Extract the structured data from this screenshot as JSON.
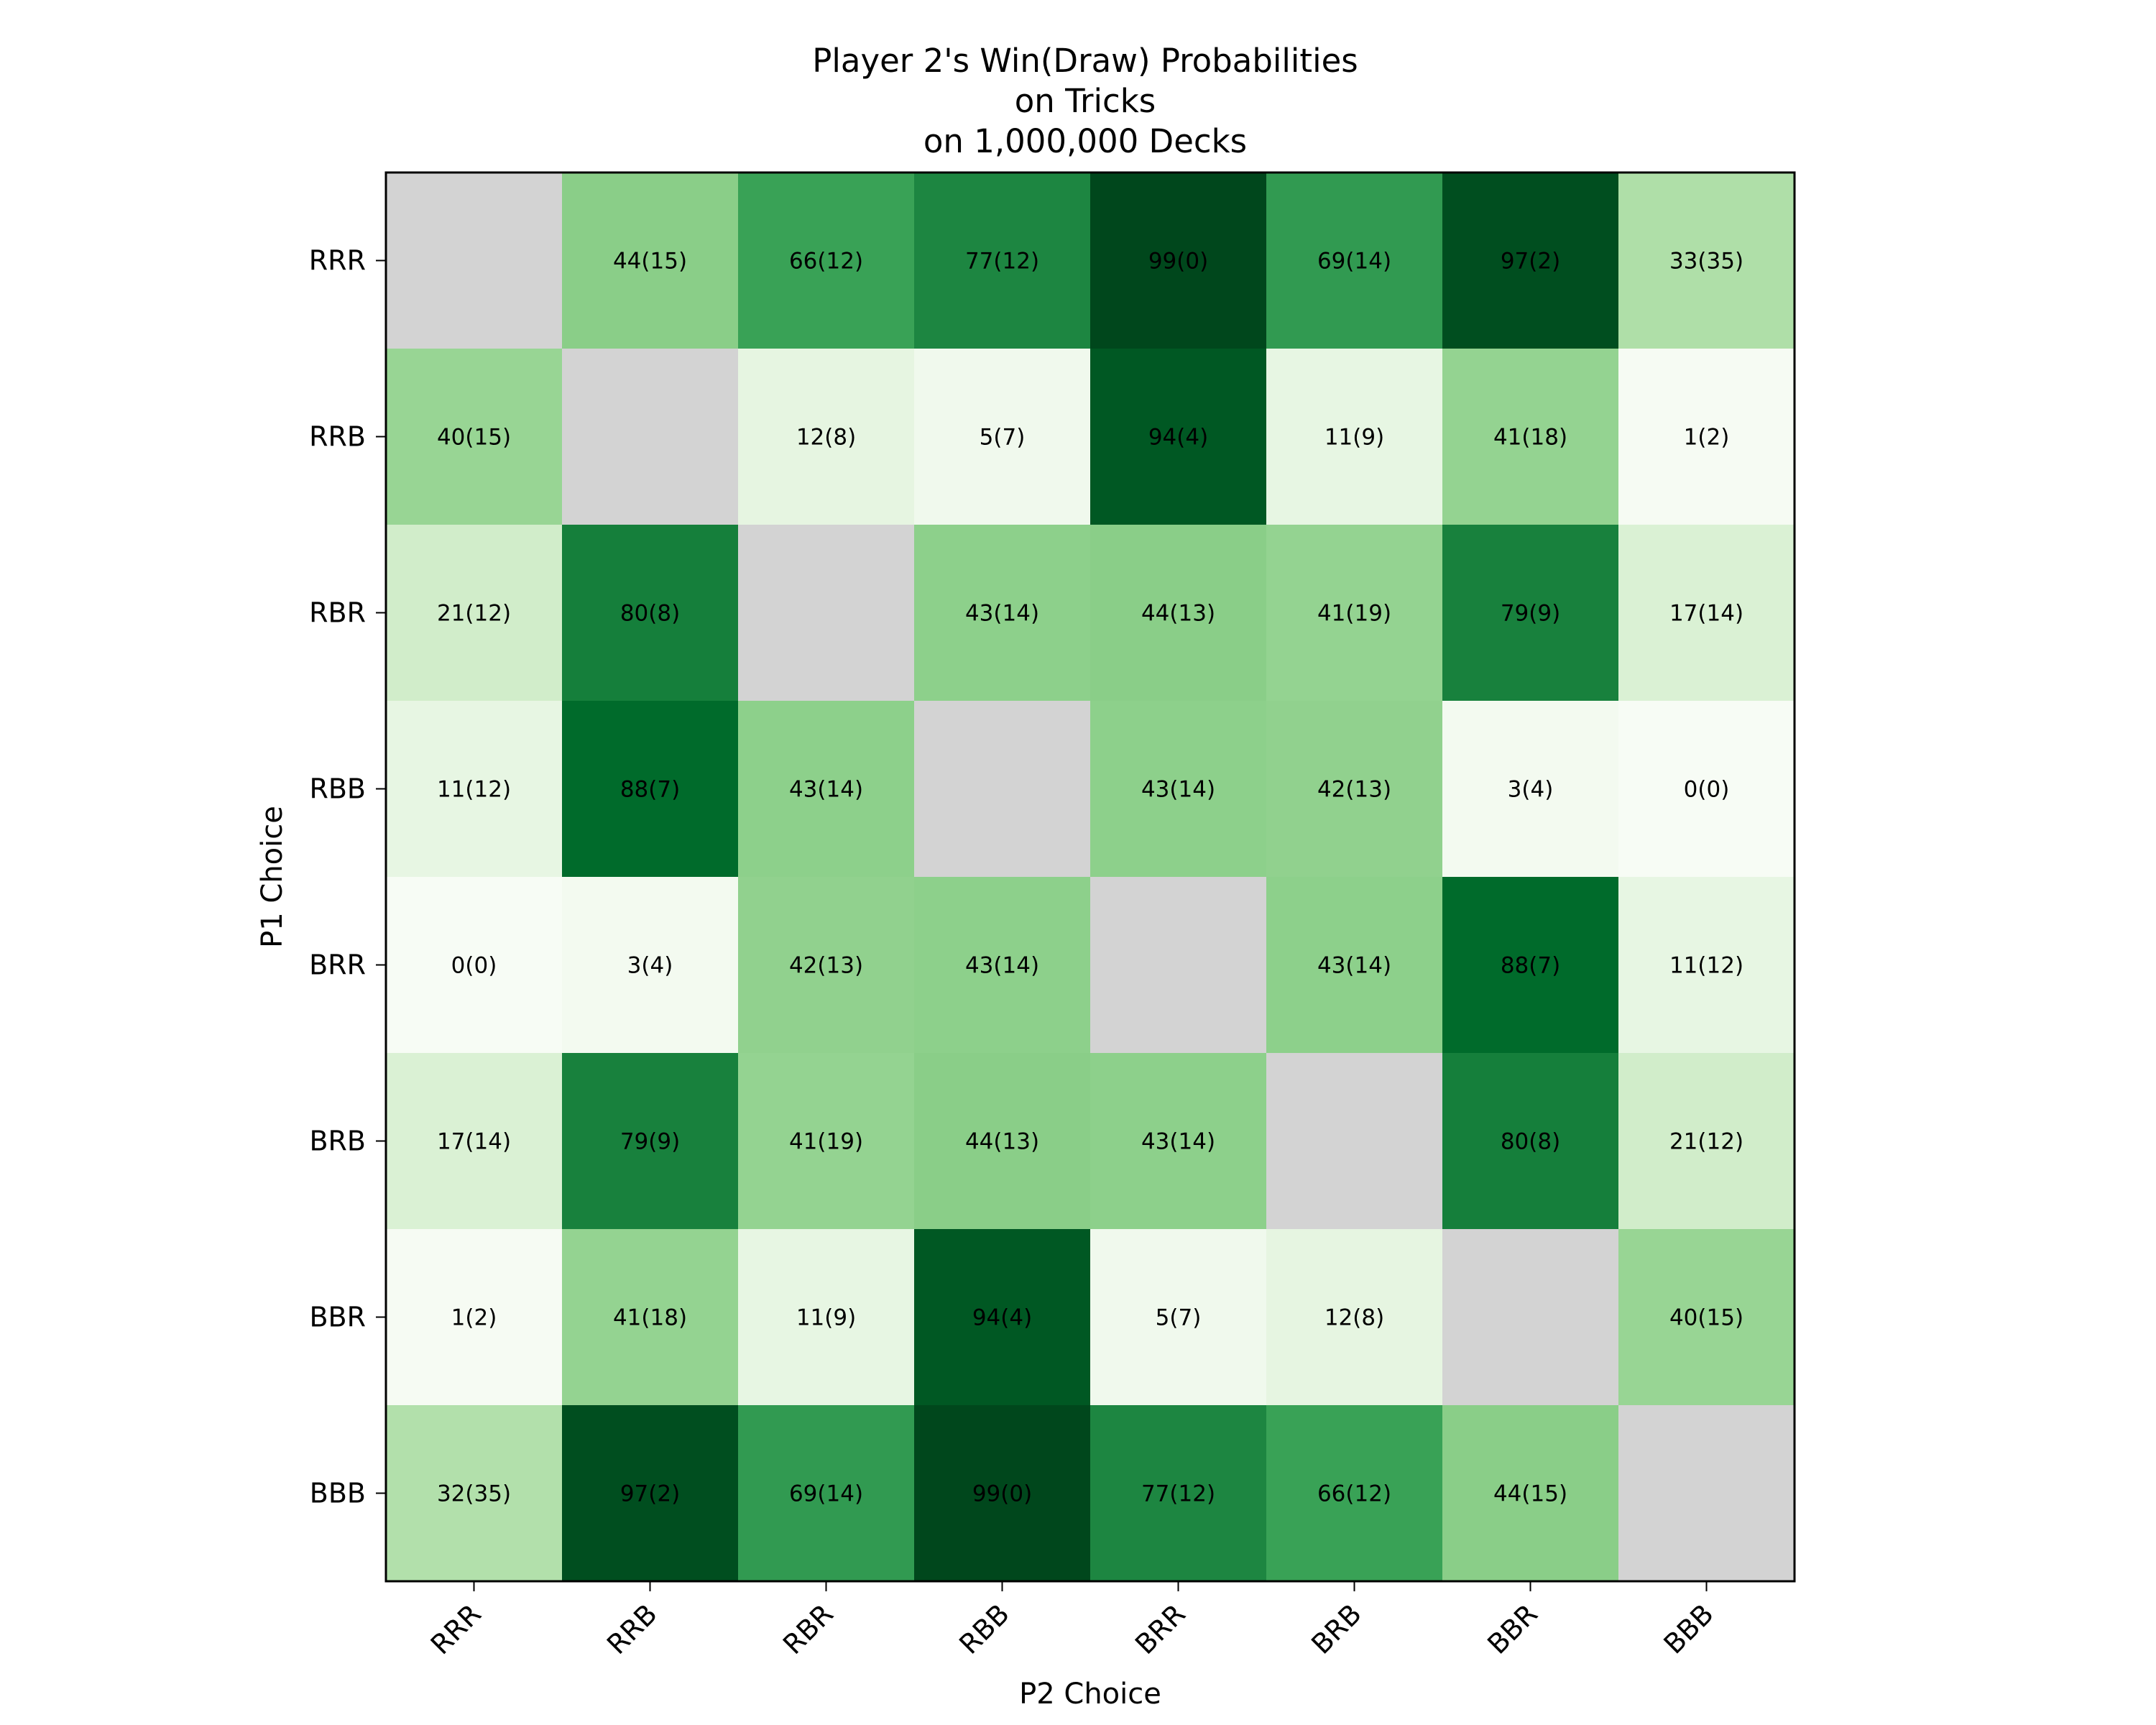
{
  "chart_data": {
    "type": "heatmap",
    "title_lines": [
      "Player 2's Win(Draw) Probabilities",
      "on Tricks",
      "on 1,000,000 Decks"
    ],
    "xlabel": "P2 Choice",
    "ylabel": "P1 Choice",
    "x_categories": [
      "RRR",
      "RRB",
      "RBR",
      "RBB",
      "BRR",
      "BRB",
      "BBR",
      "BBB"
    ],
    "y_categories": [
      "RRR",
      "RRB",
      "RBR",
      "RBB",
      "BRR",
      "BRB",
      "BBR",
      "BBB"
    ],
    "colormap": "Greens",
    "diagonal_color": "#d3d3d3",
    "cells": [
      [
        "",
        "44(15)",
        "66(12)",
        "77(12)",
        "99(0)",
        "69(14)",
        "97(2)",
        "33(35)"
      ],
      [
        "40(15)",
        "",
        "12(8)",
        "5(7)",
        "94(4)",
        "11(9)",
        "41(18)",
        "1(2)"
      ],
      [
        "21(12)",
        "80(8)",
        "",
        "43(14)",
        "44(13)",
        "41(19)",
        "79(9)",
        "17(14)"
      ],
      [
        "11(12)",
        "88(7)",
        "43(14)",
        "",
        "43(14)",
        "42(13)",
        "3(4)",
        "0(0)"
      ],
      [
        "0(0)",
        "3(4)",
        "42(13)",
        "43(14)",
        "",
        "43(14)",
        "88(7)",
        "11(12)"
      ],
      [
        "17(14)",
        "79(9)",
        "41(19)",
        "44(13)",
        "43(14)",
        "",
        "80(8)",
        "21(12)"
      ],
      [
        "1(2)",
        "41(18)",
        "11(9)",
        "94(4)",
        "5(7)",
        "12(8)",
        "",
        "40(15)"
      ],
      [
        "32(35)",
        "97(2)",
        "69(14)",
        "99(0)",
        "77(12)",
        "66(12)",
        "44(15)",
        ""
      ]
    ]
  }
}
